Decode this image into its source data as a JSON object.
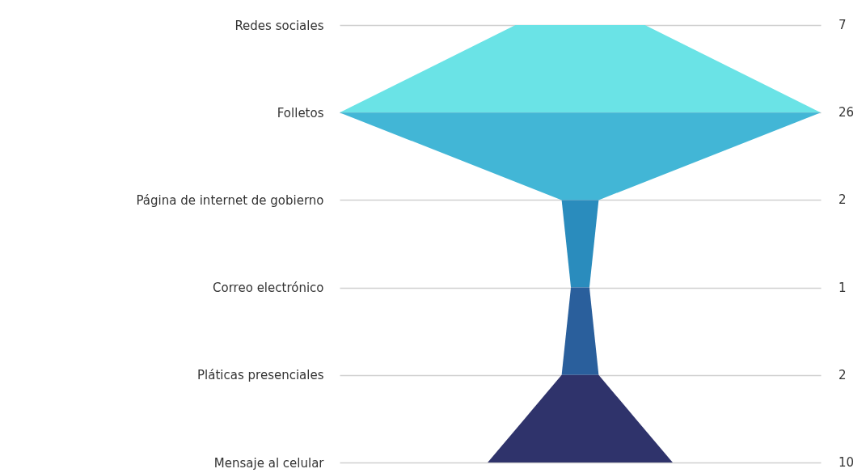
{
  "chart_data": {
    "type": "other",
    "categories": [
      "Redes sociales",
      "Folletos",
      "Página de internet de gobierno",
      "Correo electrónico",
      "Pláticas presenciales",
      "Mensaje al celular"
    ],
    "values": [
      7,
      26,
      2,
      1,
      2,
      10
    ],
    "colors": [
      "#6ae3e6",
      "#42b6d6",
      "#2a8cbd",
      "#2a5f9c",
      "#2f336b",
      "#2f336b"
    ],
    "data_labels": true
  }
}
